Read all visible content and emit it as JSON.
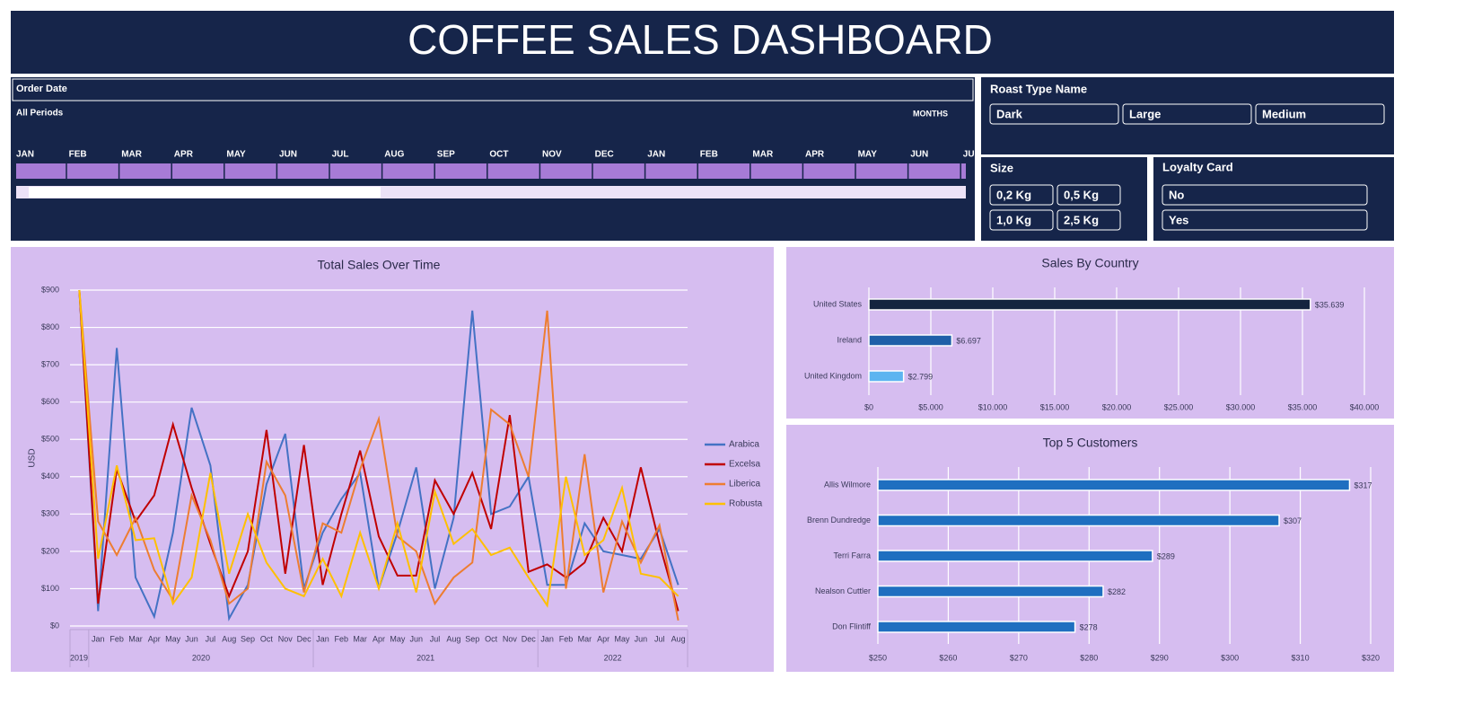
{
  "header": {
    "title": "COFFEE SALES DASHBOARD"
  },
  "timeline": {
    "title": "Order Date",
    "period": "All Periods",
    "unit": "MONTHS",
    "months": [
      "JAN",
      "FEB",
      "MAR",
      "APR",
      "MAY",
      "JUN",
      "JUL",
      "AUG",
      "SEP",
      "OCT",
      "NOV",
      "DEC",
      "JAN",
      "FEB",
      "MAR",
      "APR",
      "MAY",
      "JUN",
      "JU"
    ]
  },
  "slicers": [
    {
      "title": "Roast Type Name",
      "items": [
        "Dark",
        "Large",
        "Medium"
      ]
    },
    {
      "title": "Size",
      "items": [
        "0,2 Kg",
        "0,5 Kg",
        "1,0 Kg",
        "2,5 Kg"
      ]
    },
    {
      "title": "Loyalty Card",
      "items": [
        "No",
        "Yes"
      ]
    }
  ],
  "chart_data": [
    {
      "type": "line",
      "title": "Total Sales Over Time",
      "y_label": "USD",
      "groups": [
        {
          "label": "2019",
          "categories": [
            null
          ]
        },
        {
          "label": "2020",
          "categories": [
            "Jan",
            "Feb",
            "Mar",
            "Apr",
            "May",
            "Jun",
            "Jul",
            "Aug",
            "Sep",
            "Oct",
            "Nov",
            "Dec"
          ]
        },
        {
          "label": "2021",
          "categories": [
            "Jan",
            "Feb",
            "Mar",
            "Apr",
            "May",
            "Jun",
            "Jul",
            "Aug",
            "Sep",
            "Oct",
            "Nov",
            "Dec"
          ]
        },
        {
          "label": "2022",
          "categories": [
            "Jan",
            "Feb",
            "Mar",
            "Apr",
            "May",
            "Jun",
            "Jul",
            "Aug"
          ]
        }
      ],
      "series": [
        {
          "name": "Arabica",
          "color": "#4472c4",
          "values": [
            900,
            40,
            745,
            130,
            25,
            250,
            585,
            430,
            20,
            110,
            380,
            515,
            100,
            250,
            340,
            410,
            100,
            250,
            425,
            100,
            290,
            845,
            300,
            320,
            400,
            110,
            110,
            275,
            200,
            190,
            180,
            260,
            110
          ]
        },
        {
          "name": "Excelsa",
          "color": "#c00000",
          "values": [
            900,
            60,
            420,
            280,
            350,
            540,
            370,
            220,
            80,
            200,
            525,
            140,
            485,
            110,
            300,
            470,
            240,
            135,
            135,
            390,
            300,
            410,
            260,
            565,
            145,
            165,
            130,
            170,
            290,
            200,
            425,
            220,
            40
          ]
        },
        {
          "name": "Liberica",
          "color": "#ed7d31",
          "values": [
            900,
            280,
            190,
            290,
            150,
            70,
            350,
            230,
            60,
            100,
            440,
            350,
            90,
            275,
            250,
            420,
            555,
            240,
            200,
            60,
            130,
            170,
            580,
            540,
            400,
            845,
            100,
            460,
            90,
            280,
            170,
            270,
            15
          ]
        },
        {
          "name": "Robusta",
          "color": "#ffc000",
          "values": [
            900,
            180,
            430,
            230,
            235,
            60,
            130,
            410,
            140,
            300,
            170,
            100,
            80,
            180,
            80,
            250,
            100,
            275,
            90,
            360,
            220,
            260,
            190,
            210,
            130,
            55,
            400,
            190,
            230,
            370,
            140,
            130,
            80
          ]
        }
      ],
      "ylim": [
        0,
        900
      ],
      "yticks": [
        {
          "value": 0,
          "label": "$0"
        },
        {
          "value": 100,
          "label": "$100"
        },
        {
          "value": 200,
          "label": "$200"
        },
        {
          "value": 300,
          "label": "$300"
        },
        {
          "value": 400,
          "label": "$400"
        },
        {
          "value": 500,
          "label": "$500"
        },
        {
          "value": 600,
          "label": "$600"
        },
        {
          "value": 700,
          "label": "$700"
        },
        {
          "value": 800,
          "label": "$800"
        },
        {
          "value": 900,
          "label": "$900"
        }
      ],
      "grid": true,
      "legend": "right"
    },
    {
      "type": "barh",
      "title": "Sales By Country",
      "categories": [
        "United States",
        "Ireland",
        "United Kingdom"
      ],
      "values": [
        35639,
        6697,
        2799
      ],
      "value_labels": [
        "$35.639",
        "$6.697",
        "$2.799"
      ],
      "colors": [
        "#14243f",
        "#1f5fa8",
        "#5db4f0"
      ],
      "xlim": [
        0,
        40000
      ],
      "xticks": [
        {
          "value": 0,
          "label": "$0"
        },
        {
          "value": 5000,
          "label": "$5.000"
        },
        {
          "value": 10000,
          "label": "$10.000"
        },
        {
          "value": 15000,
          "label": "$15.000"
        },
        {
          "value": 20000,
          "label": "$20.000"
        },
        {
          "value": 25000,
          "label": "$25.000"
        },
        {
          "value": 30000,
          "label": "$30.000"
        },
        {
          "value": 35000,
          "label": "$35.000"
        },
        {
          "value": 40000,
          "label": "$40.000"
        }
      ],
      "grid": true
    },
    {
      "type": "barh",
      "title": "Top 5 Customers",
      "categories": [
        "Allis Wilmore",
        "Brenn Dundredge",
        "Terri Farra",
        "Nealson Cuttler",
        "Don Flintiff"
      ],
      "values": [
        317,
        307,
        289,
        282,
        278
      ],
      "value_labels": [
        "$317",
        "$307",
        "$289",
        "$282",
        "$278"
      ],
      "colors": [
        "#1f6fc0",
        "#1f6fc0",
        "#1f6fc0",
        "#1f6fc0",
        "#1f6fc0"
      ],
      "xlim": [
        250,
        320
      ],
      "xticks": [
        {
          "value": 250,
          "label": "$250"
        },
        {
          "value": 260,
          "label": "$260"
        },
        {
          "value": 270,
          "label": "$270"
        },
        {
          "value": 280,
          "label": "$280"
        },
        {
          "value": 290,
          "label": "$290"
        },
        {
          "value": 300,
          "label": "$300"
        },
        {
          "value": 310,
          "label": "$310"
        },
        {
          "value": 320,
          "label": "$320"
        }
      ],
      "grid": true
    }
  ]
}
